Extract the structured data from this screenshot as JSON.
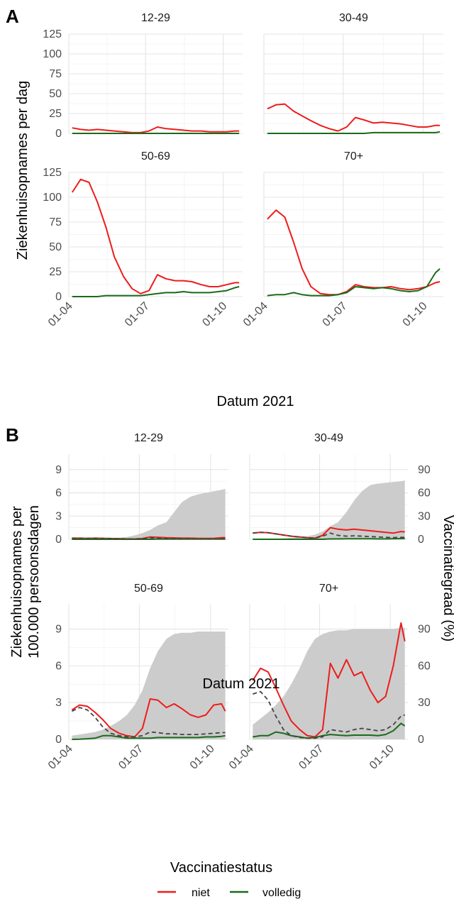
{
  "figure": {
    "legend": {
      "title": "Vaccinatiestatus",
      "items": [
        {
          "label": "niet",
          "color": "#ee1c1c"
        },
        {
          "label": "volledig",
          "color": "#1a6b1a"
        }
      ],
      "placement": "bottom"
    }
  },
  "chart_data": [
    {
      "panel_label": "A",
      "type": "line",
      "facets": [
        "12-29",
        "30-49",
        "50-69",
        "70+"
      ],
      "xlabel": "Datum 2021",
      "ylabel": "Ziekenhuisopnames per dag",
      "x_ticks": [
        "01-04",
        "01-07",
        "01-10"
      ],
      "y_ticks": [
        0,
        25,
        50,
        75,
        100,
        125
      ],
      "ylim": [
        0,
        125
      ],
      "grid": true,
      "x_points": [
        "04-05",
        "04-15",
        "04-25",
        "05-05",
        "05-15",
        "05-25",
        "06-05",
        "06-15",
        "06-25",
        "07-05",
        "07-15",
        "07-25",
        "08-05",
        "08-15",
        "08-25",
        "09-05",
        "09-15",
        "09-25",
        "10-05",
        "10-15",
        "10-20"
      ],
      "panels": [
        {
          "facet": "12-29",
          "series": [
            {
              "name": "niet",
              "color": "#ee1c1c",
              "values": [
                7,
                5,
                4,
                5,
                4,
                3,
                2,
                1,
                1,
                3,
                8,
                6,
                5,
                4,
                3,
                3,
                2,
                2,
                2,
                3,
                3
              ]
            },
            {
              "name": "volledig",
              "color": "#1a6b1a",
              "values": [
                0,
                0,
                0,
                0,
                0,
                0,
                0,
                0,
                0,
                0,
                0,
                0,
                0,
                0,
                0,
                0,
                0,
                0,
                0,
                0,
                0
              ]
            }
          ]
        },
        {
          "facet": "30-49",
          "series": [
            {
              "name": "niet",
              "color": "#ee1c1c",
              "values": [
                31,
                36,
                37,
                28,
                22,
                16,
                10,
                6,
                3,
                8,
                20,
                17,
                13,
                14,
                13,
                12,
                10,
                8,
                8,
                10,
                10
              ]
            },
            {
              "name": "volledig",
              "color": "#1a6b1a",
              "values": [
                0,
                0,
                0,
                0,
                0,
                0,
                0,
                0,
                0,
                0,
                0,
                0,
                1,
                1,
                1,
                1,
                1,
                1,
                1,
                1,
                2
              ]
            }
          ]
        },
        {
          "facet": "50-69",
          "series": [
            {
              "name": "niet",
              "color": "#ee1c1c",
              "values": [
                105,
                118,
                115,
                95,
                70,
                40,
                20,
                8,
                3,
                6,
                22,
                18,
                16,
                16,
                15,
                12,
                10,
                10,
                12,
                14,
                14
              ]
            },
            {
              "name": "volledig",
              "color": "#1a6b1a",
              "values": [
                0,
                0,
                0,
                0,
                1,
                1,
                1,
                1,
                1,
                2,
                3,
                4,
                4,
                5,
                4,
                4,
                4,
                5,
                6,
                9,
                10
              ]
            }
          ]
        },
        {
          "facet": "70+",
          "series": [
            {
              "name": "niet",
              "color": "#ee1c1c",
              "values": [
                78,
                87,
                80,
                55,
                28,
                10,
                3,
                2,
                2,
                5,
                12,
                10,
                9,
                9,
                10,
                8,
                7,
                8,
                10,
                14,
                15
              ]
            },
            {
              "name": "volledig",
              "color": "#1a6b1a",
              "values": [
                1,
                2,
                2,
                4,
                2,
                1,
                1,
                1,
                2,
                4,
                10,
                9,
                8,
                9,
                8,
                6,
                5,
                6,
                10,
                24,
                28
              ]
            }
          ]
        }
      ]
    },
    {
      "panel_label": "B",
      "type": "line",
      "facets": [
        "12-29",
        "30-49",
        "50-69",
        "70+"
      ],
      "xlabel": "Datum 2021",
      "ylabel": "Ziekenhuisopnames per 100.000 persoonsdagen",
      "y2label": "Vaccinatiegraad (%)",
      "x_ticks": [
        "01-04",
        "01-07",
        "01-10"
      ],
      "y_ticks": [
        0,
        3,
        6,
        9
      ],
      "y2_ticks": [
        0,
        30,
        60,
        90
      ],
      "ylim": [
        0,
        11
      ],
      "y2lim": [
        0,
        110
      ],
      "grid": true,
      "x_points": [
        "04-05",
        "04-15",
        "04-25",
        "05-05",
        "05-15",
        "05-25",
        "06-05",
        "06-15",
        "06-25",
        "07-05",
        "07-15",
        "07-25",
        "08-05",
        "08-15",
        "08-25",
        "09-05",
        "09-15",
        "09-25",
        "10-05",
        "10-15",
        "10-20"
      ],
      "panels": [
        {
          "facet": "12-29",
          "series": [
            {
              "name": "niet",
              "color": "#ee1c1c",
              "values": [
                0.15,
                0.15,
                0.12,
                0.15,
                0.12,
                0.1,
                0.08,
                0.05,
                0.05,
                0.1,
                0.3,
                0.25,
                0.2,
                0.18,
                0.15,
                0.15,
                0.12,
                0.12,
                0.12,
                0.2,
                0.22
              ]
            },
            {
              "name": "volledig",
              "color": "#1a6b1a",
              "values": [
                0,
                0,
                0,
                0,
                0,
                0,
                0,
                0,
                0,
                0,
                0,
                0.02,
                0.02,
                0.02,
                0.02,
                0.02,
                0.02,
                0.02,
                0.02,
                0.03,
                0.03
              ]
            },
            {
              "color": "#444444",
              "values": [
                0.15,
                0.15,
                0.12,
                0.15,
                0.12,
                0.1,
                0.08,
                0.05,
                0.05,
                0.08,
                0.2,
                0.15,
                0.1,
                0.08,
                0.07,
                0.06,
                0.05,
                0.05,
                0.05,
                0.06,
                0.06
              ]
            }
          ],
          "coverage": [
            0,
            0,
            0,
            0,
            1,
            1,
            2,
            3,
            5,
            8,
            12,
            18,
            22,
            35,
            48,
            55,
            58,
            60,
            62,
            64,
            65
          ]
        },
        {
          "facet": "30-49",
          "series": [
            {
              "name": "niet",
              "color": "#ee1c1c",
              "values": [
                0.8,
                0.9,
                0.85,
                0.7,
                0.55,
                0.4,
                0.3,
                0.2,
                0.15,
                0.5,
                1.5,
                1.3,
                1.2,
                1.3,
                1.2,
                1.1,
                1.0,
                0.9,
                0.8,
                1.0,
                0.95
              ]
            },
            {
              "name": "volledig",
              "color": "#1a6b1a",
              "values": [
                0,
                0,
                0,
                0,
                0,
                0,
                0,
                0,
                0,
                0,
                0.05,
                0.05,
                0.06,
                0.06,
                0.06,
                0.06,
                0.05,
                0.05,
                0.06,
                0.08,
                0.1
              ]
            },
            {
              "color": "#444444",
              "values": [
                0.8,
                0.9,
                0.85,
                0.7,
                0.55,
                0.4,
                0.3,
                0.2,
                0.15,
                0.4,
                0.8,
                0.5,
                0.4,
                0.45,
                0.4,
                0.35,
                0.3,
                0.25,
                0.22,
                0.25,
                0.25
              ]
            }
          ],
          "coverage": [
            0,
            0,
            0,
            1,
            1,
            2,
            3,
            4,
            6,
            10,
            17,
            22,
            35,
            50,
            62,
            70,
            72,
            73,
            74,
            75,
            76
          ]
        },
        {
          "facet": "50-69",
          "series": [
            {
              "name": "niet",
              "color": "#ee1c1c",
              "values": [
                2.4,
                2.8,
                2.7,
                2.2,
                1.6,
                0.9,
                0.5,
                0.3,
                0.2,
                0.9,
                3.3,
                3.2,
                2.6,
                2.9,
                2.5,
                2.0,
                1.8,
                2.0,
                2.8,
                2.9,
                2.3
              ]
            },
            {
              "name": "volledig",
              "color": "#1a6b1a",
              "values": [
                0,
                0.02,
                0.05,
                0.1,
                0.3,
                0.3,
                0.2,
                0.1,
                0.1,
                0.1,
                0.1,
                0.15,
                0.15,
                0.15,
                0.15,
                0.15,
                0.15,
                0.2,
                0.2,
                0.25,
                0.3
              ]
            },
            {
              "color": "#444444",
              "values": [
                2.3,
                2.6,
                2.4,
                1.8,
                1.0,
                0.5,
                0.3,
                0.2,
                0.2,
                0.3,
                0.6,
                0.55,
                0.45,
                0.45,
                0.4,
                0.4,
                0.4,
                0.45,
                0.5,
                0.55,
                0.55
              ]
            }
          ],
          "coverage": [
            3,
            4,
            5,
            6,
            8,
            11,
            15,
            20,
            28,
            40,
            58,
            72,
            82,
            86,
            87,
            87,
            88,
            88,
            88,
            88,
            88
          ]
        },
        {
          "facet": "70+",
          "series": [
            {
              "name": "niet",
              "color": "#ee1c1c",
              "values": [
                4.8,
                5.8,
                5.5,
                4.2,
                2.8,
                1.5,
                0.8,
                0.3,
                0.2,
                0.8,
                6.2,
                5.0,
                6.5,
                5.2,
                5.5,
                4.0,
                3.0,
                3.5,
                6.0,
                9.5,
                8.0
              ]
            },
            {
              "name": "volledig",
              "color": "#1a6b1a",
              "values": [
                0.2,
                0.3,
                0.3,
                0.6,
                0.5,
                0.3,
                0.2,
                0.1,
                0.15,
                0.3,
                0.4,
                0.35,
                0.3,
                0.35,
                0.35,
                0.35,
                0.3,
                0.4,
                0.7,
                1.3,
                1.1
              ]
            },
            {
              "color": "#444444",
              "values": [
                3.7,
                3.9,
                3.2,
                1.9,
                0.8,
                0.3,
                0.15,
                0.1,
                0.1,
                0.2,
                0.8,
                0.7,
                0.6,
                0.8,
                0.9,
                0.8,
                0.7,
                0.8,
                1.2,
                1.9,
                2.0
              ]
            }
          ],
          "coverage": [
            12,
            17,
            22,
            28,
            35,
            45,
            58,
            72,
            82,
            86,
            88,
            89,
            89,
            90,
            90,
            90,
            90,
            90,
            90,
            91,
            91
          ]
        }
      ]
    }
  ]
}
